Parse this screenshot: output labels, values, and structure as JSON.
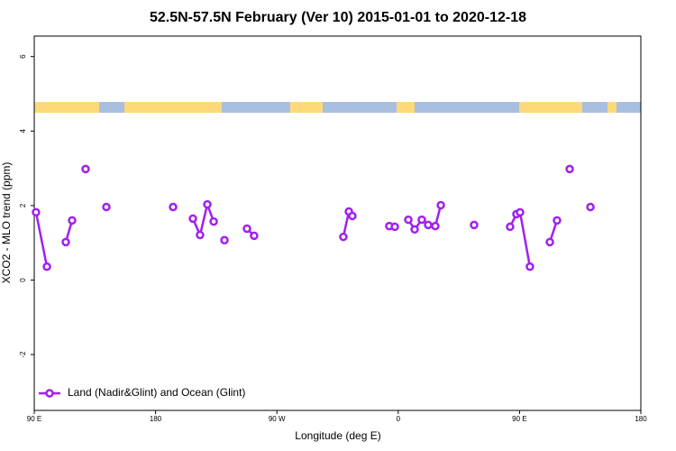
{
  "chart_data": {
    "type": "line",
    "title": "52.5N-57.5N February (Ver 10)   2015-01-01 to 2020-12-18",
    "x_label": "Longitude (deg E)",
    "y_label": "XCO2 - MLO trend (ppm)",
    "xlim": [
      90,
      540
    ],
    "ylim": [
      -3.5,
      6.55
    ],
    "xticks": [
      {
        "value": 90,
        "label": "90 E"
      },
      180,
      {
        "value": 270,
        "label": "90 W"
      },
      {
        "value": 360,
        "label": "0"
      },
      {
        "value": 450,
        "label": "90 E"
      },
      {
        "value": 540,
        "label": "180"
      }
    ],
    "yticks": [
      -2,
      0,
      2,
      4,
      6
    ],
    "legend": "bottom-left",
    "series": [
      {
        "name": "Land (Nadir&Glint) and Ocean (Glint)",
        "color": "#a020f0",
        "x": [
          91.3,
          99.4,
          null,
          113.4,
          118.1,
          null,
          128.1,
          null,
          143.5,
          null,
          193.0,
          null,
          207.7,
          213.0,
          218.4,
          223.1,
          null,
          231.1,
          null,
          247.8,
          253.1,
          null,
          319.3,
          323.4,
          326.0,
          null,
          353.4,
          357.5,
          null,
          367.5,
          372.2,
          377.5,
          382.2,
          387.5,
          391.6,
          null,
          416.3,
          null,
          443.0,
          447.7,
          450.4,
          457.7,
          null,
          472.5,
          477.8,
          null,
          487.2,
          null,
          502.6
        ],
        "values": [
          1.82,
          0.36,
          null,
          1.02,
          1.6,
          null,
          2.98,
          null,
          1.96,
          null,
          1.96,
          null,
          1.65,
          1.21,
          2.03,
          1.57,
          null,
          1.07,
          null,
          1.38,
          1.19,
          null,
          1.16,
          1.84,
          1.72,
          null,
          1.45,
          1.43,
          null,
          1.62,
          1.36,
          1.62,
          1.48,
          1.45,
          2.01,
          null,
          1.48,
          null,
          1.43,
          1.77,
          1.82,
          0.36,
          null,
          1.02,
          1.6,
          null,
          2.98,
          null,
          1.96
        ]
      }
    ]
  }
}
